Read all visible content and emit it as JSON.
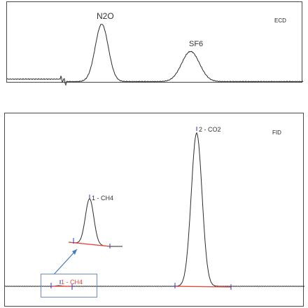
{
  "chart_data": [
    {
      "type": "line",
      "detector": "ECD",
      "annotations": [
        {
          "label": "N2O",
          "x": 0.32,
          "height": 0.82
        },
        {
          "label": "SF6",
          "x": 0.62,
          "height": 0.43
        }
      ],
      "baseline_step_x": 0.19,
      "grid": false
    },
    {
      "type": "line",
      "detector": "FID",
      "annotations": [
        {
          "label": "1 - CH4",
          "x": 0.18,
          "height": 0.004
        },
        {
          "label": "2 - CO2",
          "x": 0.64,
          "height": 0.96
        }
      ],
      "inset": {
        "label": "1 - CH4",
        "source_label": "1 - CH4"
      },
      "grid": false
    }
  ],
  "labels": {
    "ecd_detector": "ECD",
    "fid_detector": "FID",
    "n2o_peak": "N2O",
    "sf6_peak": "SF6",
    "co2_peak": "2 - CO2",
    "ch4_inset_peak": "1 - CH4",
    "ch4_small_peak": "1 - CH4"
  },
  "colors": {
    "trace": "#2b2b2b",
    "baseline_fit": "#e8463c",
    "marker": "#2a34c8",
    "arrow": "#4a78c2"
  }
}
